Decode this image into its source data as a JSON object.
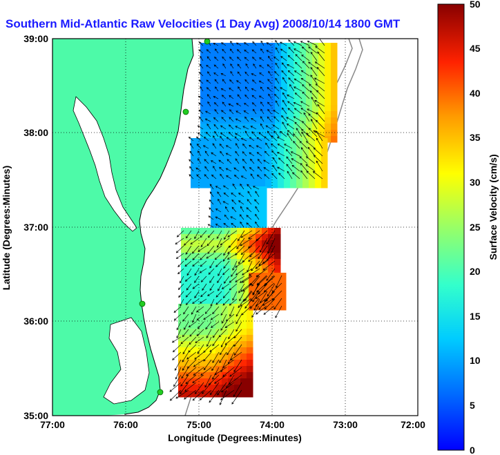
{
  "title": "Southern Mid-Atlantic Raw Velocities (1 Day Avg) 2008/10/14 1800 GMT",
  "map": {
    "xlabel": "Longitude (Degrees:Minutes)",
    "ylabel": "Latitude (Degrees:Minutes)",
    "x_ticks": [
      "77:00",
      "76:00",
      "75:00",
      "74:00",
      "73:00",
      "72:00"
    ],
    "y_ticks": [
      "39:00",
      "38:00",
      "37:00",
      "36:00",
      "35:00"
    ],
    "lon_range": [
      -77,
      -72
    ],
    "lat_range": [
      35,
      39
    ],
    "grid": "dotted",
    "land_color": "#4dfaa8",
    "sea_color": "#ffffff",
    "station_color": "#22cc22"
  },
  "colorbar": {
    "label": "Surface Velocity (cm/s)",
    "ticks": [
      "50",
      "45",
      "40",
      "35",
      "30",
      "25",
      "20",
      "15",
      "10",
      "5",
      "0"
    ],
    "range": [
      0,
      50
    ],
    "colormap": "jet"
  }
}
